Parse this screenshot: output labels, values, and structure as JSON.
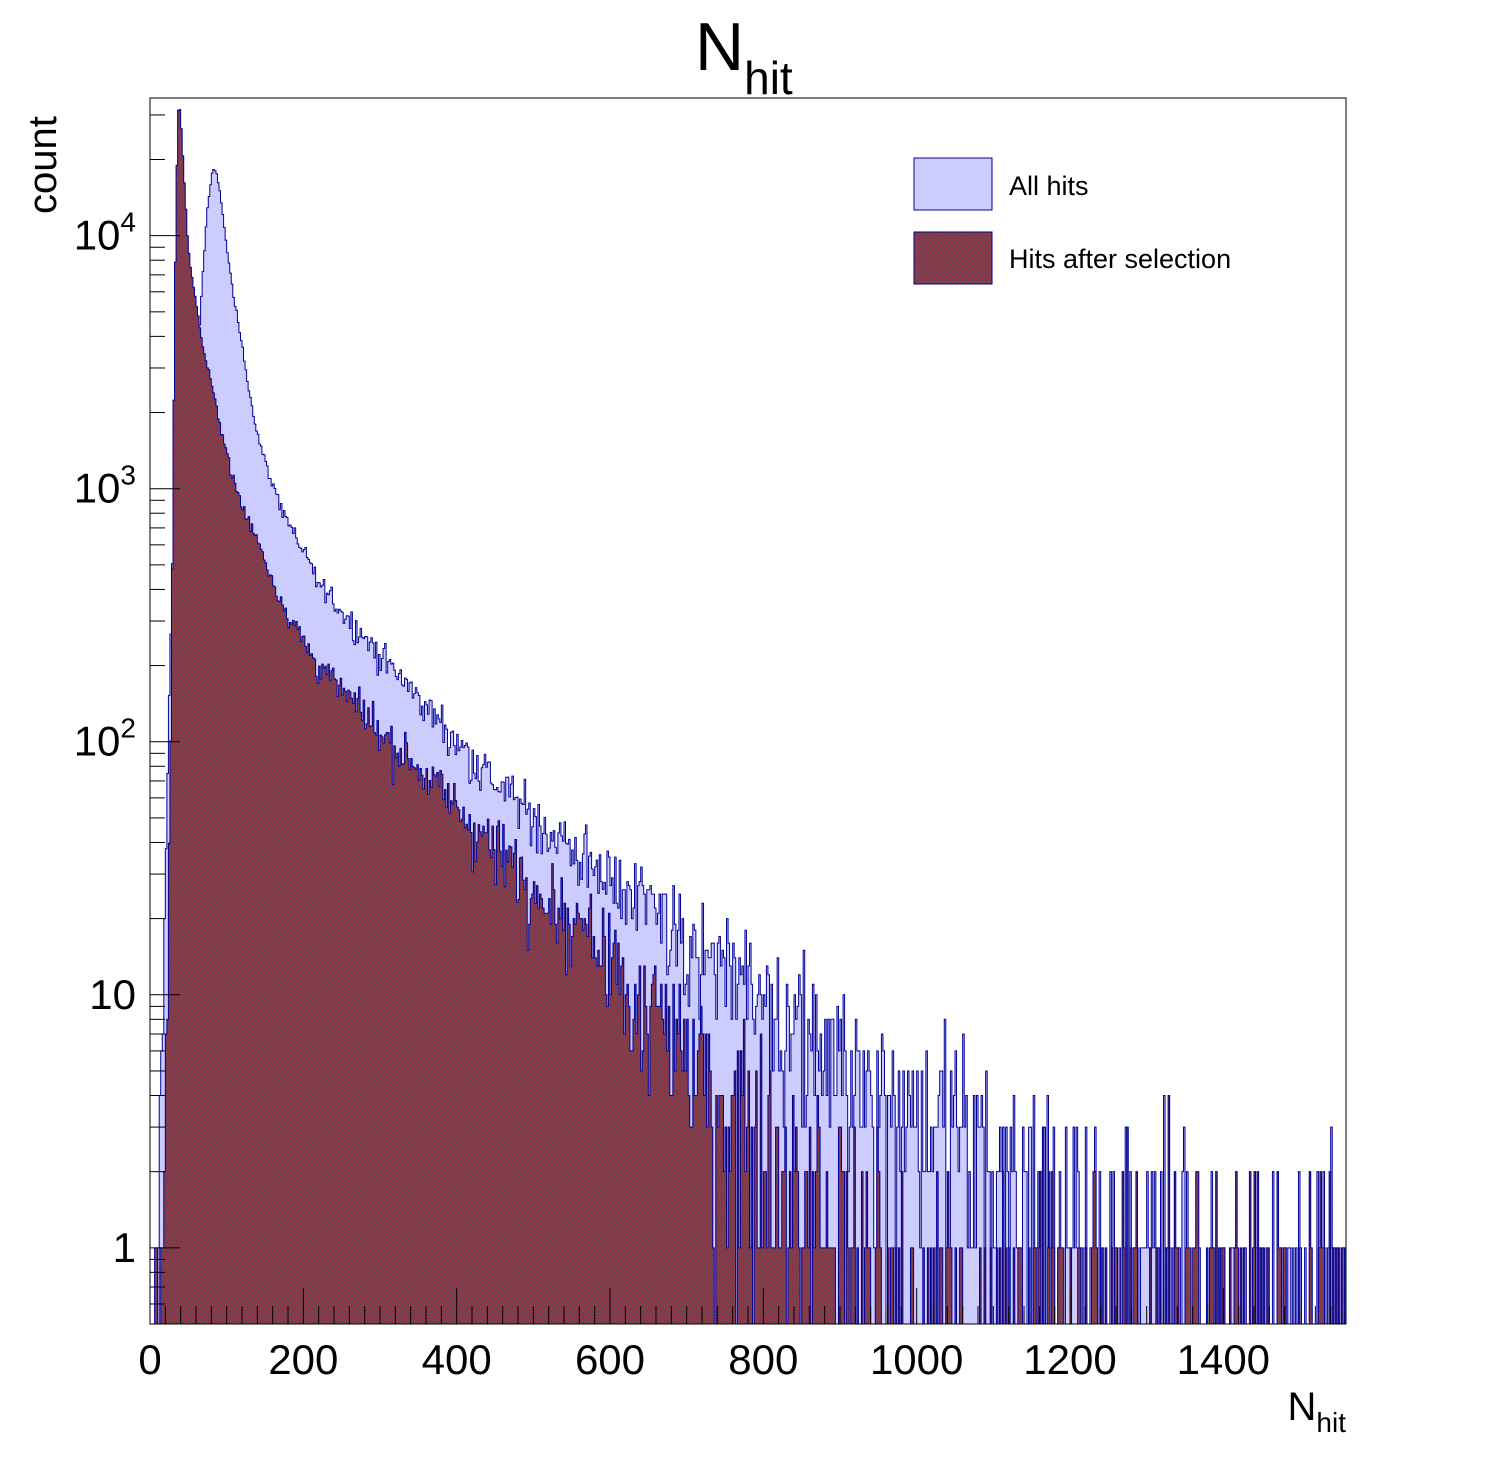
{
  "chart_data": {
    "type": "histogram",
    "title_main": "N",
    "title_sub": "hit",
    "xlabel_main": "N",
    "xlabel_sub": "hit",
    "ylabel": "count",
    "xlim": [
      0,
      1560
    ],
    "ylim": [
      0.5,
      35000
    ],
    "yscale": "log",
    "grid": false,
    "legend_position": "top-right",
    "x_ticks": [
      "0",
      "200",
      "400",
      "600",
      "800",
      "1000",
      "1200",
      "1400"
    ],
    "y_ticks": [
      {
        "value": 1,
        "label": "1",
        "exp": ""
      },
      {
        "value": 10,
        "label": "10",
        "exp": ""
      },
      {
        "value": 100,
        "label": "10",
        "exp": "2"
      },
      {
        "value": 1000,
        "label": "10",
        "exp": "3"
      },
      {
        "value": 10000,
        "label": "10",
        "exp": "4"
      }
    ],
    "series": [
      {
        "name": "All hits",
        "fill": "#ccccff",
        "line": "#000099",
        "pattern": "solid",
        "bin_width": 2,
        "points": [
          [
            0,
            0
          ],
          [
            8,
            0
          ],
          [
            12,
            1
          ],
          [
            16,
            4
          ],
          [
            20,
            25
          ],
          [
            24,
            120
          ],
          [
            28,
            400
          ],
          [
            32,
            900
          ],
          [
            36,
            1200
          ],
          [
            40,
            1300
          ],
          [
            44,
            1250
          ],
          [
            50,
            1200
          ],
          [
            56,
            1600
          ],
          [
            62,
            3000
          ],
          [
            68,
            6500
          ],
          [
            74,
            12000
          ],
          [
            80,
            17000
          ],
          [
            84,
            18500
          ],
          [
            88,
            17000
          ],
          [
            94,
            13000
          ],
          [
            100,
            9000
          ],
          [
            110,
            5500
          ],
          [
            120,
            3700
          ],
          [
            130,
            2400
          ],
          [
            140,
            1650
          ],
          [
            150,
            1280
          ],
          [
            160,
            1030
          ],
          [
            170,
            880
          ],
          [
            180,
            740
          ],
          [
            200,
            560
          ],
          [
            220,
            420
          ],
          [
            250,
            330
          ],
          [
            300,
            220
          ],
          [
            350,
            150
          ],
          [
            400,
            100
          ],
          [
            450,
            70
          ],
          [
            500,
            50
          ],
          [
            550,
            38
          ],
          [
            600,
            29
          ],
          [
            650,
            22
          ],
          [
            700,
            16
          ],
          [
            750,
            13
          ],
          [
            800,
            10
          ],
          [
            850,
            8
          ],
          [
            900,
            6
          ],
          [
            950,
            4.5
          ],
          [
            1000,
            3.5
          ],
          [
            1050,
            3
          ],
          [
            1100,
            2.3
          ],
          [
            1150,
            1.6
          ],
          [
            1200,
            1.2
          ],
          [
            1260,
            1
          ],
          [
            1280,
            0.7
          ],
          [
            1350,
            0.55
          ],
          [
            1560,
            0.5
          ]
        ]
      },
      {
        "name": "Hits after selection",
        "fill": "#a3384f",
        "line": "#000099",
        "pattern": "hatched",
        "bin_width": 2,
        "points": [
          [
            0,
            0
          ],
          [
            12,
            0.5
          ],
          [
            16,
            1
          ],
          [
            20,
            3
          ],
          [
            24,
            20
          ],
          [
            28,
            200
          ],
          [
            32,
            5000
          ],
          [
            36,
            30000
          ],
          [
            38,
            33000
          ],
          [
            40,
            30000
          ],
          [
            44,
            18000
          ],
          [
            50,
            9000
          ],
          [
            56,
            6500
          ],
          [
            62,
            5000
          ],
          [
            70,
            3500
          ],
          [
            80,
            2600
          ],
          [
            90,
            1900
          ],
          [
            100,
            1400
          ],
          [
            110,
            1050
          ],
          [
            120,
            850
          ],
          [
            130,
            730
          ],
          [
            140,
            630
          ],
          [
            150,
            530
          ],
          [
            160,
            430
          ],
          [
            180,
            320
          ],
          [
            200,
            250
          ],
          [
            220,
            200
          ],
          [
            250,
            160
          ],
          [
            300,
            110
          ],
          [
            350,
            80
          ],
          [
            400,
            55
          ],
          [
            450,
            38
          ],
          [
            500,
            28
          ],
          [
            550,
            19
          ],
          [
            600,
            13
          ],
          [
            650,
            9
          ],
          [
            700,
            6
          ],
          [
            750,
            4
          ],
          [
            800,
            3
          ],
          [
            850,
            2
          ],
          [
            900,
            1.4
          ],
          [
            930,
            1
          ],
          [
            940,
            0.6
          ],
          [
            950,
            0.5
          ],
          [
            1560,
            0.5
          ]
        ]
      }
    ],
    "legend": [
      {
        "label": "All hits",
        "series": 0
      },
      {
        "label": "Hits after selection",
        "series": 1
      }
    ]
  }
}
